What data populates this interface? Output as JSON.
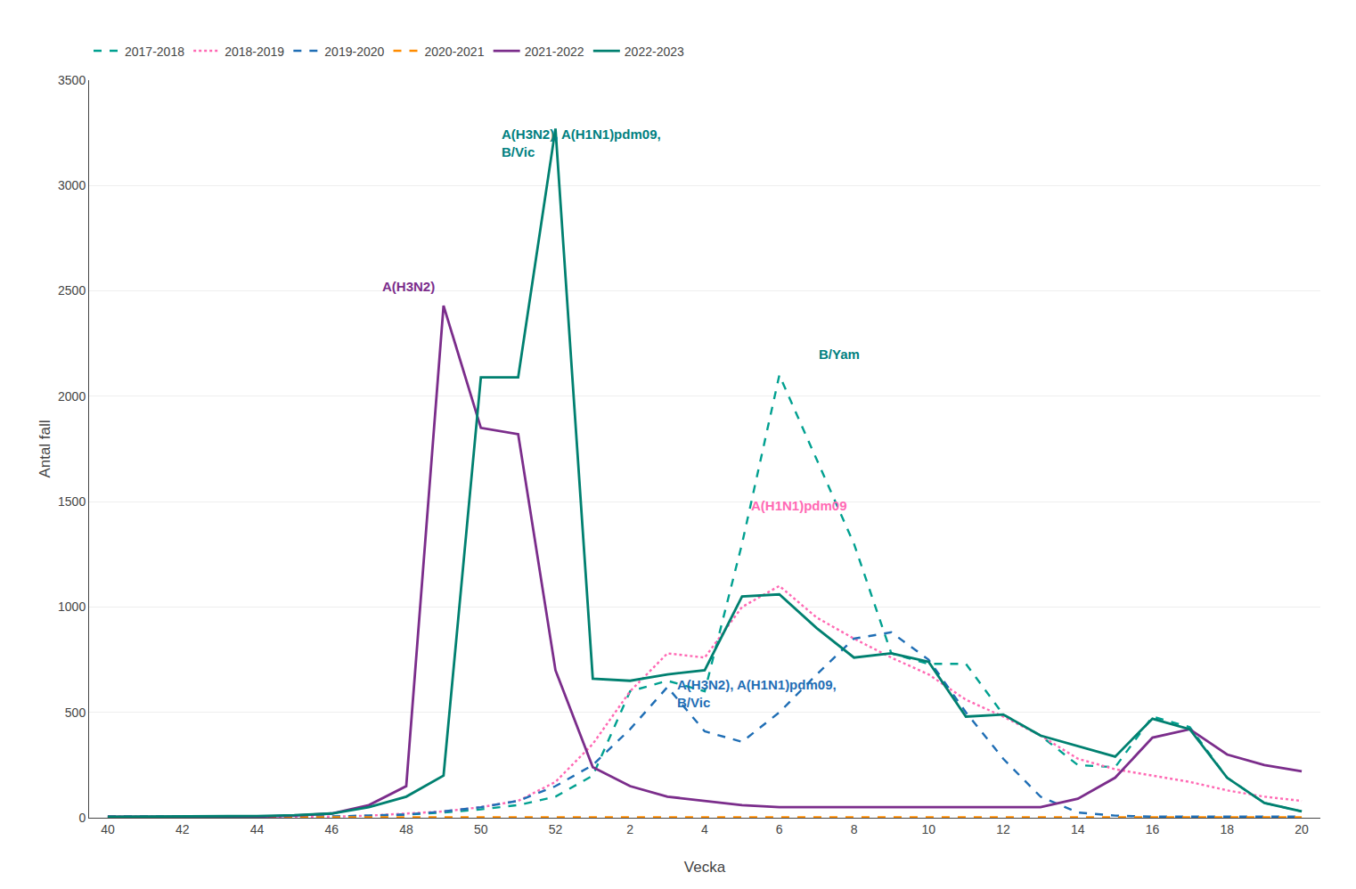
{
  "chart_data": {
    "type": "line",
    "ylabel": "Antal fall",
    "xlabel": "Vecka",
    "categories": [
      "40",
      null,
      "42",
      null,
      "44",
      null,
      "46",
      null,
      "48",
      null,
      "50",
      null,
      "52",
      null,
      "2",
      null,
      "4",
      null,
      "6",
      null,
      "8",
      null,
      "10",
      null,
      "12",
      null,
      "14",
      null,
      "16",
      null,
      "18",
      null,
      "20"
    ],
    "ylim": [
      0,
      3500
    ],
    "yticks": [
      0,
      500,
      1000,
      1500,
      2000,
      2500,
      3000,
      3500
    ],
    "grid": true,
    "legend": "top",
    "series": [
      {
        "name": "2017-2018",
        "color": "#00a090",
        "line_style": "dashed",
        "values": [
          5,
          5,
          5,
          5,
          5,
          5,
          5,
          10,
          15,
          25,
          40,
          60,
          100,
          200,
          600,
          650,
          600,
          1300,
          2100,
          1700,
          1300,
          780,
          730,
          730,
          490,
          390,
          250,
          240,
          480,
          430,
          190,
          70,
          30
        ]
      },
      {
        "name": "2018-2019",
        "color": "#ff69b4",
        "line_style": "dotted",
        "values": [
          5,
          5,
          5,
          5,
          5,
          5,
          5,
          10,
          20,
          30,
          50,
          80,
          170,
          350,
          600,
          780,
          760,
          1000,
          1100,
          950,
          850,
          760,
          680,
          560,
          480,
          390,
          280,
          230,
          200,
          170,
          130,
          100,
          80
        ]
      },
      {
        "name": "2019-2020",
        "color": "#1f6eb5",
        "line_style": "dashed",
        "values": [
          5,
          5,
          5,
          5,
          5,
          5,
          5,
          10,
          15,
          30,
          50,
          80,
          150,
          250,
          420,
          620,
          410,
          360,
          500,
          680,
          850,
          880,
          750,
          500,
          280,
          100,
          25,
          10,
          5,
          5,
          5,
          5,
          5
        ]
      },
      {
        "name": "2020-2021",
        "color": "#ff8c00",
        "line_style": "dashed",
        "values": [
          2,
          2,
          2,
          2,
          2,
          2,
          2,
          2,
          2,
          2,
          2,
          2,
          2,
          2,
          2,
          2,
          2,
          2,
          2,
          2,
          2,
          2,
          2,
          2,
          2,
          2,
          2,
          2,
          2,
          2,
          2,
          2,
          2
        ]
      },
      {
        "name": "2021-2022",
        "color": "#7b2d8b",
        "line_style": "solid",
        "values": [
          5,
          5,
          5,
          5,
          5,
          10,
          20,
          60,
          150,
          2430,
          1850,
          1820,
          700,
          240,
          150,
          100,
          80,
          60,
          50,
          50,
          50,
          50,
          50,
          50,
          50,
          50,
          90,
          190,
          380,
          420,
          300,
          250,
          220
        ]
      },
      {
        "name": "2022-2023",
        "color": "#008070",
        "line_style": "solid",
        "values": [
          5,
          5,
          5,
          5,
          8,
          12,
          20,
          50,
          100,
          200,
          2090,
          2090,
          3270,
          660,
          650,
          680,
          700,
          1050,
          1060,
          900,
          760,
          780,
          740,
          480,
          490,
          390,
          340,
          290,
          470,
          420,
          190,
          70,
          30
        ]
      }
    ],
    "annotations": [
      {
        "text": "A(H3N2)",
        "x": 47.3,
        "y": 2520,
        "color": "#7b2d8b"
      },
      {
        "text": "A(H3N2), A(H1N1)pdm09,\nB/Vic",
        "x": 50.5,
        "y": 3200,
        "color": "#008080"
      },
      {
        "text": "B/Yam",
        "x": 7.0,
        "y": 2200,
        "color": "#008080"
      },
      {
        "text": "A(H1N1)pdm09",
        "x": 5.2,
        "y": 1480,
        "color": "#ff69b4"
      },
      {
        "text": "A(H3N2), A(H1N1)pdm09,\nB/Vic",
        "x": 3.2,
        "y": 590,
        "color": "#1f6eb5"
      }
    ]
  }
}
